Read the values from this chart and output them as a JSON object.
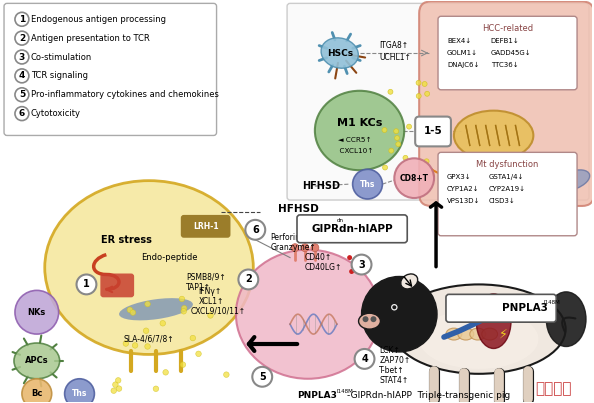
{
  "legend_items": [
    {
      "num": "1",
      "text": "Endogenous antigen processing"
    },
    {
      "num": "2",
      "text": "Antigen presentation to TCR"
    },
    {
      "num": "3",
      "text": "Co-stimulation"
    },
    {
      "num": "4",
      "text": "TCR signaling"
    },
    {
      "num": "5",
      "text": "Pro-inflammatory cytokines and chemokines"
    },
    {
      "num": "6",
      "text": "Cytotoxicity"
    }
  ],
  "watermark": "尚辰众原",
  "colors": {
    "hepatocyte_fill": "#f5e8a0",
    "hepatocyte_border": "#d4a820",
    "pink_cell_fill": "#f0b8c8",
    "pink_cell_border": "#d07090",
    "green_kc_fill": "#90c080",
    "green_kc_border": "#508040",
    "blue_hsc_fill": "#90c0d8",
    "blue_hsc_border": "#5090b0",
    "salmon_fill": "#f0c0b0",
    "salmon_border": "#d08070",
    "purple_nk": "#c0a8d8",
    "purple_nk_border": "#9060b0",
    "green_apc": "#a8c890",
    "green_apc_border": "#508040",
    "orange_bc": "#e8b870",
    "orange_bc_border": "#c09040",
    "blue_ths": "#8090c8",
    "blue_ths_border": "#5060a0",
    "cd8t_fill": "#f0b0b8",
    "cd8t_border": "#c07080",
    "mito_fill": "#e8c060",
    "mito_border": "#c09030",
    "lrh_fill": "#9B7D2A",
    "white": "#ffffff",
    "light_gray": "#eeeeee",
    "circle_border": "#888888",
    "hcc_border": "#b08888",
    "box_bg": "#ffffff"
  }
}
